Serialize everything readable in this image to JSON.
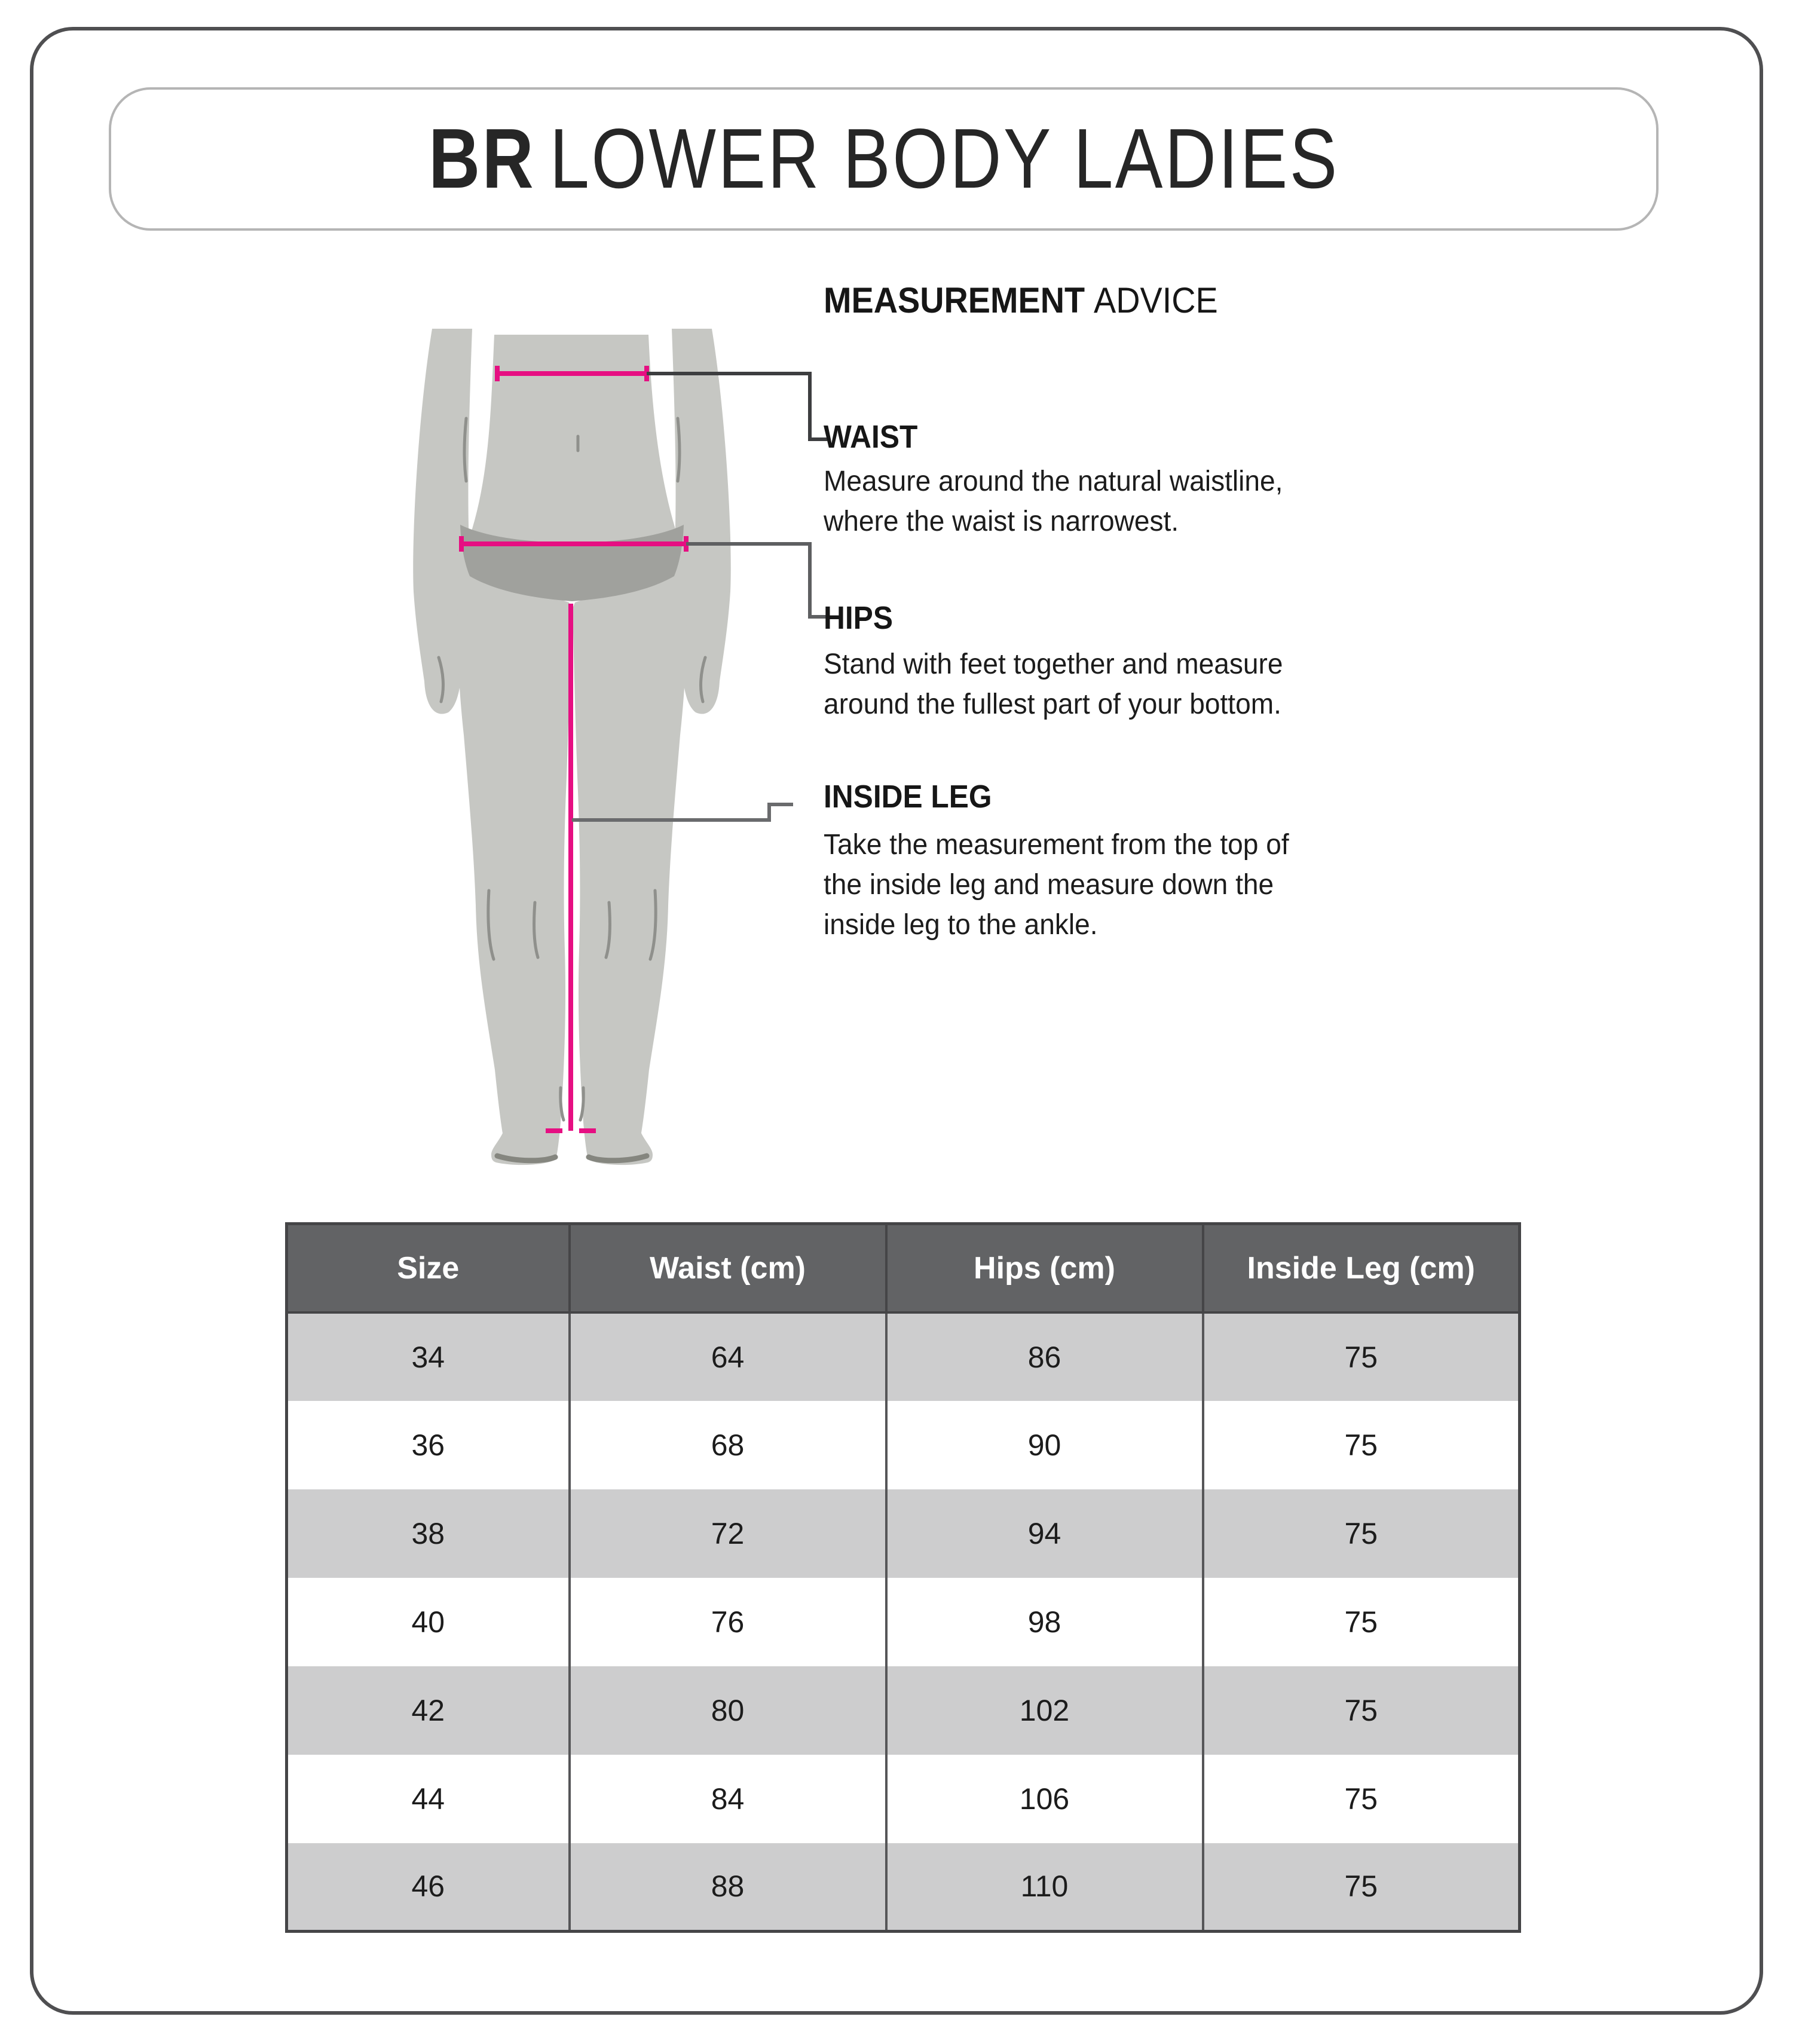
{
  "title": {
    "brand": "BR",
    "rest": "LOWER BODY LADIES"
  },
  "advice": {
    "heading_bold": "MEASUREMENT",
    "heading_rest": "ADVICE",
    "sections": [
      {
        "label": "WAIST",
        "lines": [
          "Measure around the natural waistline,",
          "where the waist is narrowest."
        ]
      },
      {
        "label": "HIPS",
        "lines": [
          "Stand with feet together and measure",
          "around the fullest part of your bottom."
        ]
      },
      {
        "label": "INSIDE LEG",
        "lines": [
          "Take the measurement from the top of",
          "the inside leg and measure down the",
          "inside leg to the ankle."
        ]
      }
    ]
  },
  "figure": {
    "description": "female-lower-body-silhouette",
    "measure_lines": [
      "waist",
      "hips",
      "inside-leg"
    ]
  },
  "size_table": {
    "columns": [
      "Size",
      "Waist (cm)",
      "Hips (cm)",
      "Inside Leg (cm)"
    ],
    "rows": [
      [
        34,
        64,
        86,
        75
      ],
      [
        36,
        68,
        90,
        75
      ],
      [
        38,
        72,
        94,
        75
      ],
      [
        40,
        76,
        98,
        75
      ],
      [
        42,
        80,
        102,
        75
      ],
      [
        44,
        84,
        106,
        75
      ],
      [
        46,
        88,
        110,
        75
      ]
    ]
  },
  "colors": {
    "accent_pink": "#e60f82",
    "figure_gray": "#c6c7c3",
    "figure_dark_gray": "#a0a19d",
    "figure_line_gray": "#8f908c",
    "table_header_bg": "#626365",
    "table_row_alt_bg": "#cdcdce",
    "table_border": "#454547",
    "connector_dark": "#3d3e40",
    "connector_mid": "#5e5f61",
    "connector_light": "#6a6b6d",
    "border_outer": "#4f4f51",
    "border_title_box": "#b5b5b5",
    "text_dark": "#1e1e1e"
  }
}
